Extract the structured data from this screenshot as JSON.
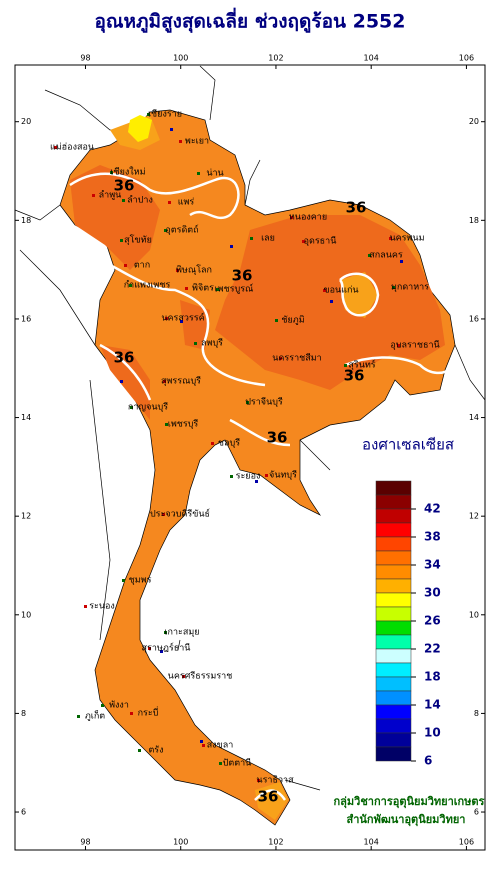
{
  "title": "อุณหภูมิสูงสุดเฉลี่ย ช่วงฤดูร้อน 2552",
  "map": {
    "xlim": [
      96.52,
      106.39
    ],
    "ylim": [
      5.23,
      21.15
    ],
    "xticks": [
      98,
      100,
      102,
      104,
      106
    ],
    "yticks": [
      6,
      8,
      10,
      12,
      14,
      16,
      18,
      20
    ],
    "contour_labels": [
      "36",
      "36",
      "36",
      "36",
      "36",
      "36",
      "36"
    ],
    "provinces": [
      "เชียงราย",
      "แม่ฮ่องสอน",
      "เชียงใหม่",
      "พะเยา",
      "น่าน",
      "ลำพูน",
      "ลำปาง",
      "แพร่",
      "อุตรดิตถ์",
      "ตาก",
      "สุโขทัย",
      "พิษณุโลก",
      "กำแพงเพชร",
      "พิจิตร",
      "เพชรบูรณ์",
      "หนองคาย",
      "เลย",
      "อุดรธานี",
      "สกลนคร",
      "นครพนม",
      "มุกดาหาร",
      "ขอนแก่น",
      "ชัยภูมิ",
      "นครสวรรค์",
      "ลพบุรี",
      "นครราชสีมา",
      "สุรินทร์",
      "อุบลราชธานี",
      "กาญจนบุรี",
      "สุพรรณบุรี",
      "ปราจีนบุรี",
      "ชลบุรี",
      "ระยอง",
      "จันทบุรี",
      "เพชรบุรี",
      "ประจวบคีรีขันธ์",
      "ชุมพร",
      "ระนอง",
      "เกาะสมุย",
      "สุราษฎร์ธานี",
      "พังงา",
      "นครศรีธรรมราช",
      "ภูเก็ต",
      "กระบี่",
      "ตรัง",
      "สงขลา",
      "ปัตตานี",
      "นราธิวาส"
    ]
  },
  "legend": {
    "title": "องศาเซลเซียส",
    "range": [
      6,
      46
    ],
    "ticks": [
      42,
      38,
      34,
      30,
      26,
      22,
      18,
      14,
      10,
      6
    ],
    "colors": [
      "#5a0000",
      "#8b0000",
      "#c00000",
      "#ff0000",
      "#ff4500",
      "#ff7000",
      "#ff8c00",
      "#ffb000",
      "#ffff00",
      "#c8ff00",
      "#00dd00",
      "#00ffaa",
      "#ccffff",
      "#00eeff",
      "#00bfff",
      "#0090ff",
      "#0000ff",
      "#0000cc",
      "#000099",
      "#000066"
    ]
  },
  "footer": [
    "กลุ่มวิชาการอุตุนิยมวิทยาเกษตร",
    "สำนักพัฒนาอุตุนิยมวิทยา"
  ]
}
